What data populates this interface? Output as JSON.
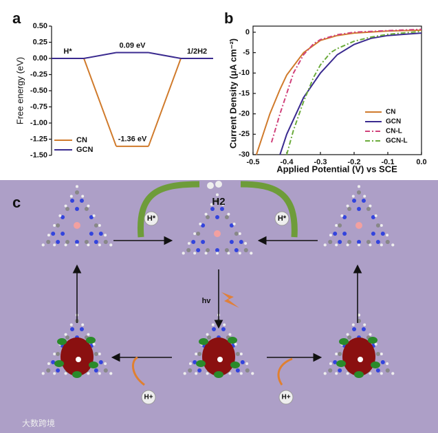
{
  "chart_data": [
    {
      "type": "energy-levels",
      "panel": "a",
      "ylabel": "Free energy (eV)",
      "categories": [
        "H*",
        null,
        "1/2H2"
      ],
      "series": [
        {
          "name": "CN",
          "color": "#d07a2b",
          "values": [
            0,
            -1.36,
            0
          ],
          "value_labels": [
            null,
            "-1.36 eV",
            null
          ]
        },
        {
          "name": "GCN",
          "color": "#3a2a8f",
          "values": [
            0,
            0.09,
            0
          ],
          "value_labels": [
            null,
            "0.09 eV",
            null
          ]
        }
      ],
      "ylim": [
        -1.5,
        0.5
      ],
      "yticks": [
        {
          "value": 0.5,
          "label": "0.50"
        },
        0.25,
        {
          "value": 0,
          "label": "0.00"
        },
        -0.25,
        {
          "value": -0.5,
          "label": "-0.50"
        },
        -0.75,
        {
          "value": -1,
          "label": "-1.00"
        },
        -1.25,
        {
          "value": -1.5,
          "label": "-1.50"
        }
      ],
      "legend": "lower-left"
    },
    {
      "type": "line",
      "panel": "b",
      "xlabel": "Applied Potential (V) vs SCE",
      "ylabel": "Current Density (μA cm⁻²)",
      "series": [
        {
          "name": "CN",
          "color": "#d07a2b",
          "dash": "solid",
          "x": [
            -0.49,
            -0.45,
            -0.42,
            -0.4,
            -0.35,
            -0.3,
            -0.25,
            -0.2,
            -0.1,
            0
          ],
          "values": [
            -30,
            -20,
            -14,
            -10.5,
            -5,
            -2,
            -0.8,
            -0.2,
            0.3,
            0.5
          ]
        },
        {
          "name": "GCN",
          "color": "#3a2a8f",
          "dash": "solid",
          "x": [
            -0.42,
            -0.4,
            -0.35,
            -0.3,
            -0.25,
            -0.2,
            -0.15,
            -0.1,
            -0.05,
            0
          ],
          "values": [
            -30,
            -25,
            -16,
            -10,
            -5.5,
            -3,
            -1.5,
            -0.8,
            -0.5,
            -0.2
          ]
        },
        {
          "name": "CN-L",
          "color": "#d0407a",
          "dash": "dashdot",
          "x": [
            -0.445,
            -0.42,
            -0.4,
            -0.38,
            -0.35,
            -0.32,
            -0.3,
            -0.25,
            -0.2,
            -0.1,
            0
          ],
          "values": [
            -27,
            -20,
            -15,
            -10,
            -5.5,
            -2.8,
            -1.8,
            -0.6,
            0,
            0.4,
            0.7
          ]
        },
        {
          "name": "GCN-L",
          "color": "#6aaa3a",
          "dash": "dashdot",
          "x": [
            -0.4,
            -0.38,
            -0.35,
            -0.32,
            -0.3,
            -0.27,
            -0.25,
            -0.2,
            -0.15,
            -0.1,
            0
          ],
          "values": [
            -30,
            -24,
            -17,
            -11,
            -8,
            -5,
            -4,
            -2.2,
            -1.2,
            -0.5,
            0.2
          ]
        }
      ],
      "xlim": [
        -0.5,
        0
      ],
      "ylim": [
        -30,
        1.5
      ],
      "xticks": [
        -0.5,
        -0.4,
        -0.3,
        -0.2,
        -0.1,
        {
          "value": 0,
          "label": "0.0"
        }
      ],
      "yticks": [
        0,
        -5,
        -10,
        -15,
        -20,
        -25,
        -30
      ],
      "legend": "lower-right"
    }
  ],
  "diagram": {
    "panel": "c",
    "product": "H2",
    "adsorbed": [
      "H*",
      "H*"
    ],
    "light": "hv",
    "protons": [
      "H+",
      "H+"
    ],
    "watermark": "大数跨境"
  }
}
